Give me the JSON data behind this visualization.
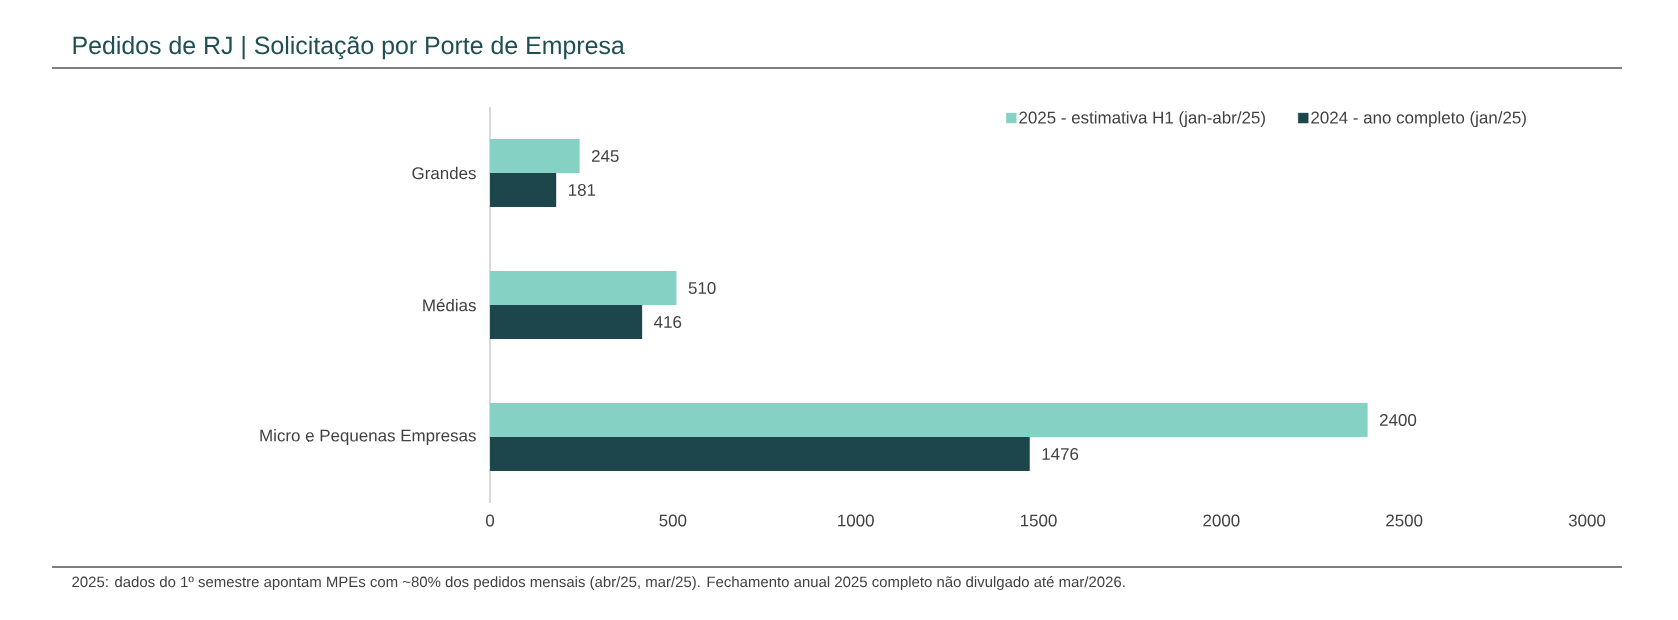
{
  "chart_data": {
    "type": "bar",
    "orientation": "horizontal",
    "title": "Pedidos de RJ | Solicitação por Porte de Empresa",
    "categories": [
      "Grandes",
      "Médias",
      "Micro e Pequenas Empresas"
    ],
    "series": [
      {
        "name": "2025 - estimativa H1 (jan-abr/25)",
        "color": "#85d1c3",
        "values": [
          245,
          510,
          2400
        ]
      },
      {
        "name": "2024 - ano completo (jan/25)",
        "color": "#1c454c",
        "values": [
          181,
          416,
          1476
        ]
      }
    ],
    "xlim": [
      0,
      3000
    ],
    "xticks": [
      0,
      500,
      1000,
      1500,
      2000,
      2500,
      3000
    ],
    "data_labels": true,
    "legend": "top right",
    "annotations": [
      "2025: dados do 1º semestre apontam MPEs com ~80% dos pedidos mensais (abr/25, mar/25). Fechamento anual 2025 completo não divulgado até mar/2026."
    ]
  }
}
